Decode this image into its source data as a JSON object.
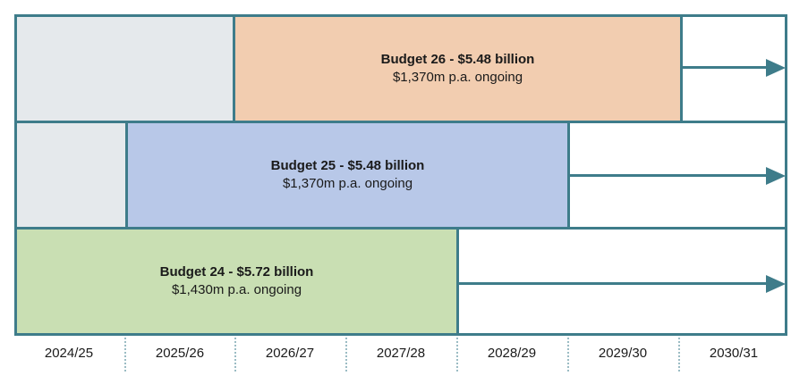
{
  "colors": {
    "border": "#3e7c8a",
    "budget26_fill": "#f2cdb0",
    "budget25_fill": "#b8c8e8",
    "budget24_fill": "#c9dfb3",
    "inactive_fill": "#e5e9ec"
  },
  "budgets": [
    {
      "title": "Budget 26 - $5.48 billion",
      "subtitle": "$1,370m p.a. ongoing"
    },
    {
      "title": "Budget 25 - $5.48 billion",
      "subtitle": "$1,370m p.a. ongoing"
    },
    {
      "title": "Budget 24 - $5.72 billion",
      "subtitle": "$1,430m p.a. ongoing"
    }
  ],
  "years": [
    "2024/25",
    "2025/26",
    "2026/27",
    "2027/28",
    "2028/29",
    "2029/30",
    "2030/31"
  ]
}
